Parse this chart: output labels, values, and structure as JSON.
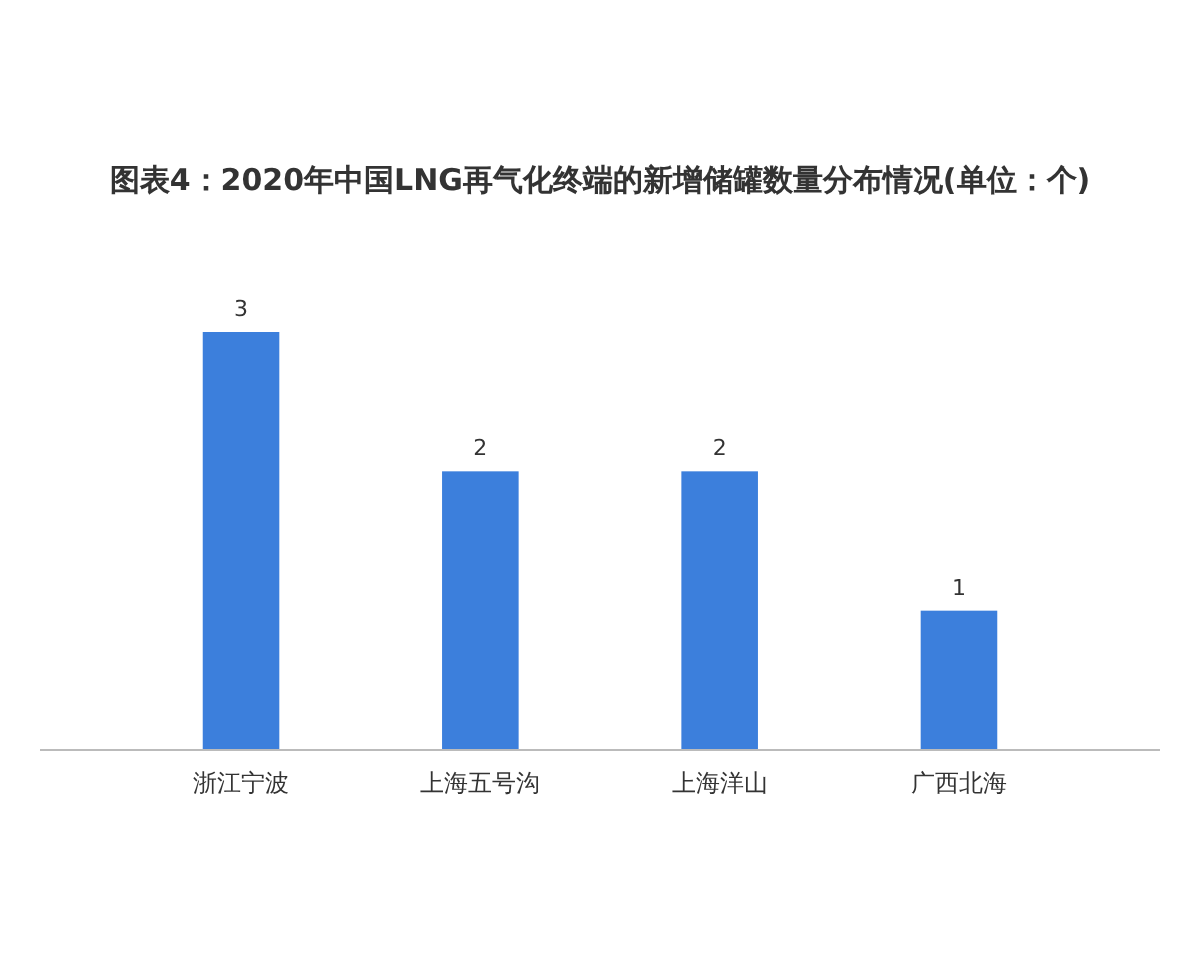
{
  "chart_data": {
    "type": "bar",
    "title": "图表4：2020年中国LNG再气化终端的新增储罐数量分布情况(单位：个)",
    "categories": [
      "浙江宁波",
      "上海五号沟",
      "上海洋山",
      "广西北海"
    ],
    "values": [
      3,
      2,
      2,
      1
    ],
    "color": "#3c7fdc",
    "data_labels": true
  }
}
